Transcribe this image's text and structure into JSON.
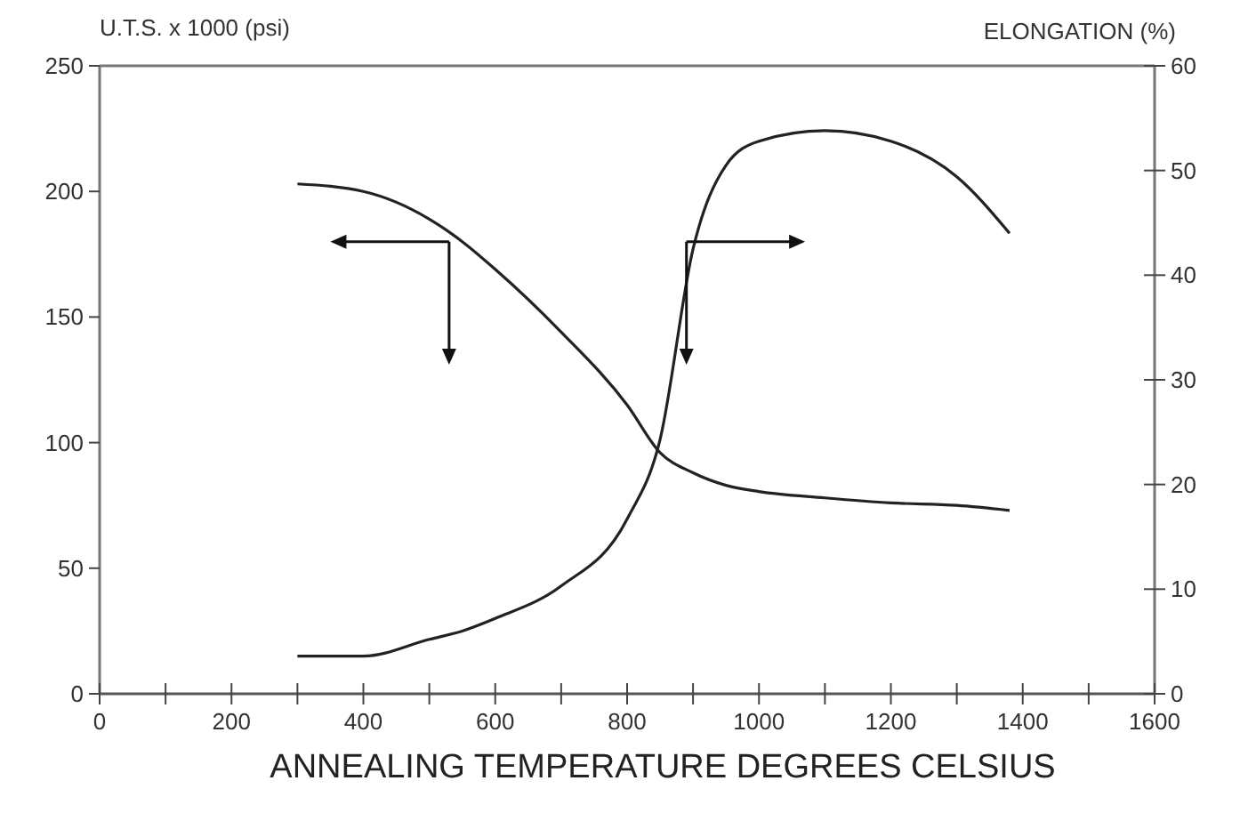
{
  "chart_data": {
    "type": "line",
    "xlabel": "ANNEALING TEMPERATURE DEGREES CELSIUS",
    "ylabel": "U.T.S. x 1000 (psi)",
    "y2label": "ELONGATION (%)",
    "x": [
      300,
      400,
      500,
      550,
      600,
      700,
      800,
      850,
      900,
      950,
      1000,
      1100,
      1200,
      1300,
      1380
    ],
    "series": [
      {
        "color": "#222222",
        "values": [
          203,
          200,
          189,
          180,
          169,
          144,
          115,
          96,
          88,
          83,
          80.5,
          78,
          76,
          75,
          73
        ]
      },
      {
        "color": "#222222",
        "axis": "y2",
        "values": [
          3.6,
          3.6,
          5.2,
          6,
          7.2,
          10.3,
          16.7,
          24.3,
          42.5,
          50.5,
          52.8,
          53.8,
          52.8,
          49.4,
          44
        ]
      }
    ],
    "xlim": [
      0,
      1600
    ],
    "xticks": [
      0,
      {
        "value": 100,
        "label": null
      },
      200,
      {
        "value": 300,
        "label": null
      },
      400,
      {
        "value": 500,
        "label": null
      },
      600,
      {
        "value": 700,
        "label": null
      },
      800,
      {
        "value": 900,
        "label": null
      },
      1000,
      {
        "value": 1100,
        "label": null
      },
      1200,
      {
        "value": 1300,
        "label": null
      },
      1400,
      {
        "value": 1500,
        "label": null
      },
      1600
    ],
    "ylim": [
      0,
      250
    ],
    "yticks": [
      0,
      50,
      100,
      150,
      200,
      250
    ],
    "y2lim": [
      0,
      60
    ],
    "y2ticks": [
      0,
      10,
      20,
      30,
      40,
      50,
      60
    ],
    "grid": false,
    "marker": "none",
    "line_style": "solid"
  }
}
